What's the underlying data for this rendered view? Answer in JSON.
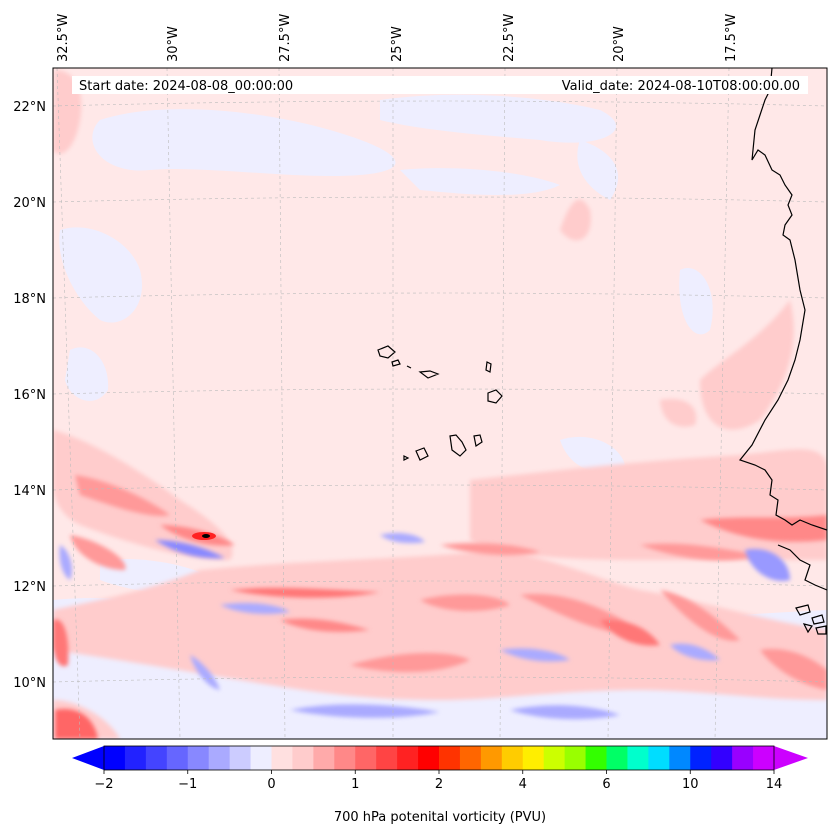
{
  "header": {
    "start_date": "Start date: 2024-08-08_00:00:00",
    "valid_date": "Valid_date: 2024-08-10T08:00:00.00"
  },
  "map": {
    "region": "Eastern tropical North Atlantic / Cabo Verde / West African coast",
    "longitude_labels": [
      "32.5°W",
      "30°W",
      "27.5°W",
      "25°W",
      "22.5°W",
      "20°W",
      "17.5°W"
    ],
    "latitude_labels": [
      "22°N",
      "20°N",
      "18°N",
      "16°N",
      "14°N",
      "12°N",
      "10°N"
    ]
  },
  "colorbar": {
    "title": "700 hPa potenital vorticity (PVU)",
    "tick_labels": [
      "−2",
      "−1",
      "0",
      "1",
      "2",
      "4",
      "6",
      "10",
      "14"
    ],
    "colors": [
      "#0000ff",
      "#2222ff",
      "#4444ff",
      "#6666ff",
      "#8888ff",
      "#aaaaff",
      "#ccccff",
      "#eeeeff",
      "#ffe0e0",
      "#ffcccc",
      "#ffaaaa",
      "#ff8888",
      "#ff6666",
      "#ff4444",
      "#ff2222",
      "#ff0000",
      "#ff3300",
      "#ff6600",
      "#ff9900",
      "#ffcc00",
      "#ffee00",
      "#ccff00",
      "#99ff00",
      "#33ff00",
      "#00ff66",
      "#00ffcc",
      "#00ddff",
      "#0088ff",
      "#0022ff",
      "#3300ff",
      "#9900ff",
      "#cc00ff"
    ],
    "extend_low_color": "#0000ff",
    "extend_high_color": "#cc00ff"
  },
  "colors": {
    "background_field": "#ffe8e8",
    "weak_negative": "#eeeeff",
    "frame": "#000000",
    "gridline": "#bbbbbb"
  }
}
